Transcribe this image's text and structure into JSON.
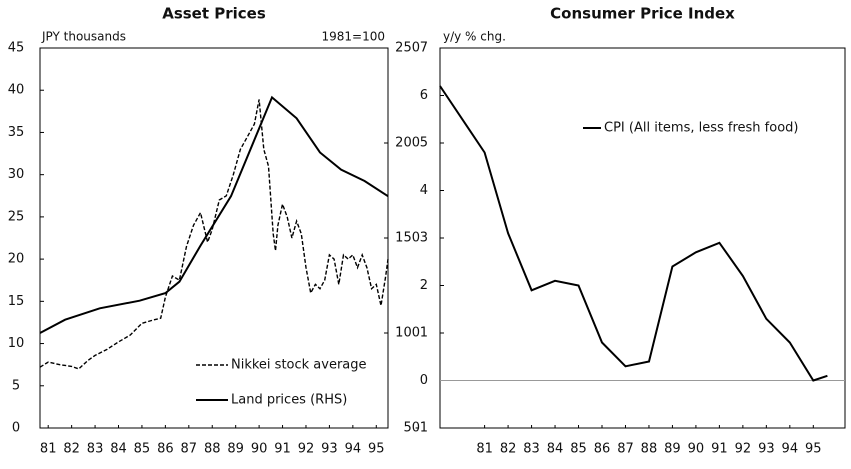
{
  "chart_data": [
    {
      "type": "line",
      "title": "Asset Prices",
      "annotations": [
        "JPY thousands",
        "1981=100"
      ],
      "xlim": [
        80.65,
        95.5
      ],
      "xticks": [
        81,
        82,
        83,
        84,
        85,
        86,
        87,
        88,
        89,
        90,
        91,
        92,
        93,
        94,
        95
      ],
      "ylim": [
        0,
        45
      ],
      "yticks": [
        0,
        5,
        10,
        15,
        20,
        25,
        30,
        35,
        40,
        45
      ],
      "y2lim": [
        50,
        250
      ],
      "y2ticks": [
        50,
        100,
        150,
        200,
        250
      ],
      "legend": "lower right",
      "series": [
        {
          "name": "Nikkei stock average",
          "color": "#000000",
          "dash": true,
          "x": [
            80.65,
            81,
            81.5,
            82,
            82.3,
            82.7,
            83,
            83.5,
            84,
            84.5,
            85,
            85.5,
            85.8,
            86,
            86.3,
            86.6,
            86.9,
            87.2,
            87.5,
            87.8,
            88,
            88.3,
            88.6,
            88.9,
            89.2,
            89.5,
            89.8,
            90,
            90.2,
            90.4,
            90.6,
            90.7,
            90.8,
            91,
            91.2,
            91.4,
            91.6,
            91.8,
            92,
            92.2,
            92.4,
            92.6,
            92.8,
            93,
            93.2,
            93.4,
            93.6,
            93.8,
            94,
            94.2,
            94.4,
            94.6,
            94.8,
            95,
            95.2,
            95.4,
            95.5
          ],
          "values": [
            7.2,
            7.8,
            7.5,
            7.3,
            7.0,
            8.0,
            8.6,
            9.3,
            10.2,
            11.0,
            12.4,
            12.8,
            13.0,
            15.5,
            18.0,
            17.5,
            21.5,
            24,
            25.5,
            22,
            23.5,
            27,
            27.5,
            30,
            33,
            34.5,
            36,
            38.9,
            33,
            31,
            23,
            21,
            24,
            26.5,
            25,
            22.5,
            24.5,
            23,
            19,
            16,
            17,
            16.5,
            17.5,
            20.5,
            20,
            17,
            20.5,
            20,
            20.5,
            19,
            20.5,
            19,
            16.5,
            17,
            14.5,
            18,
            20
          ]
        },
        {
          "name": "Land prices (RHS)",
          "color": "#000000",
          "axis": "y2",
          "x": [
            80.65,
            81.72,
            83.2,
            84.9,
            86.0,
            86.6,
            87.5,
            88.8,
            90.55,
            91.6,
            92.6,
            93.5,
            94.5,
            95.5
          ],
          "values": [
            100,
            107,
            113,
            117,
            121,
            127,
            146,
            172,
            224,
            213,
            195,
            186,
            180,
            172
          ]
        }
      ]
    },
    {
      "type": "line",
      "title": "Consumer Price Index",
      "annotations": [
        "y/y % chg."
      ],
      "xlim": [
        79.1,
        96.35
      ],
      "xticks": [
        81,
        82,
        83,
        84,
        85,
        86,
        87,
        88,
        89,
        90,
        91,
        92,
        93,
        94,
        95
      ],
      "ylim": [
        -1,
        7
      ],
      "yticks": [
        -1,
        0,
        1,
        2,
        3,
        4,
        5,
        6,
        7
      ],
      "legend": "upper right",
      "series": [
        {
          "name": "CPI (All items, less fresh food)",
          "color": "#000000",
          "x": [
            79.1,
            81,
            82,
            83,
            84,
            85,
            86,
            87,
            88,
            89,
            90,
            91,
            92,
            93,
            94,
            95,
            95.6
          ],
          "values": [
            6.2,
            4.8,
            3.1,
            1.9,
            2.1,
            2.0,
            0.8,
            0.3,
            0.4,
            2.4,
            2.7,
            2.9,
            2.2,
            1.3,
            0.8,
            0.0,
            0.1
          ]
        }
      ]
    }
  ]
}
